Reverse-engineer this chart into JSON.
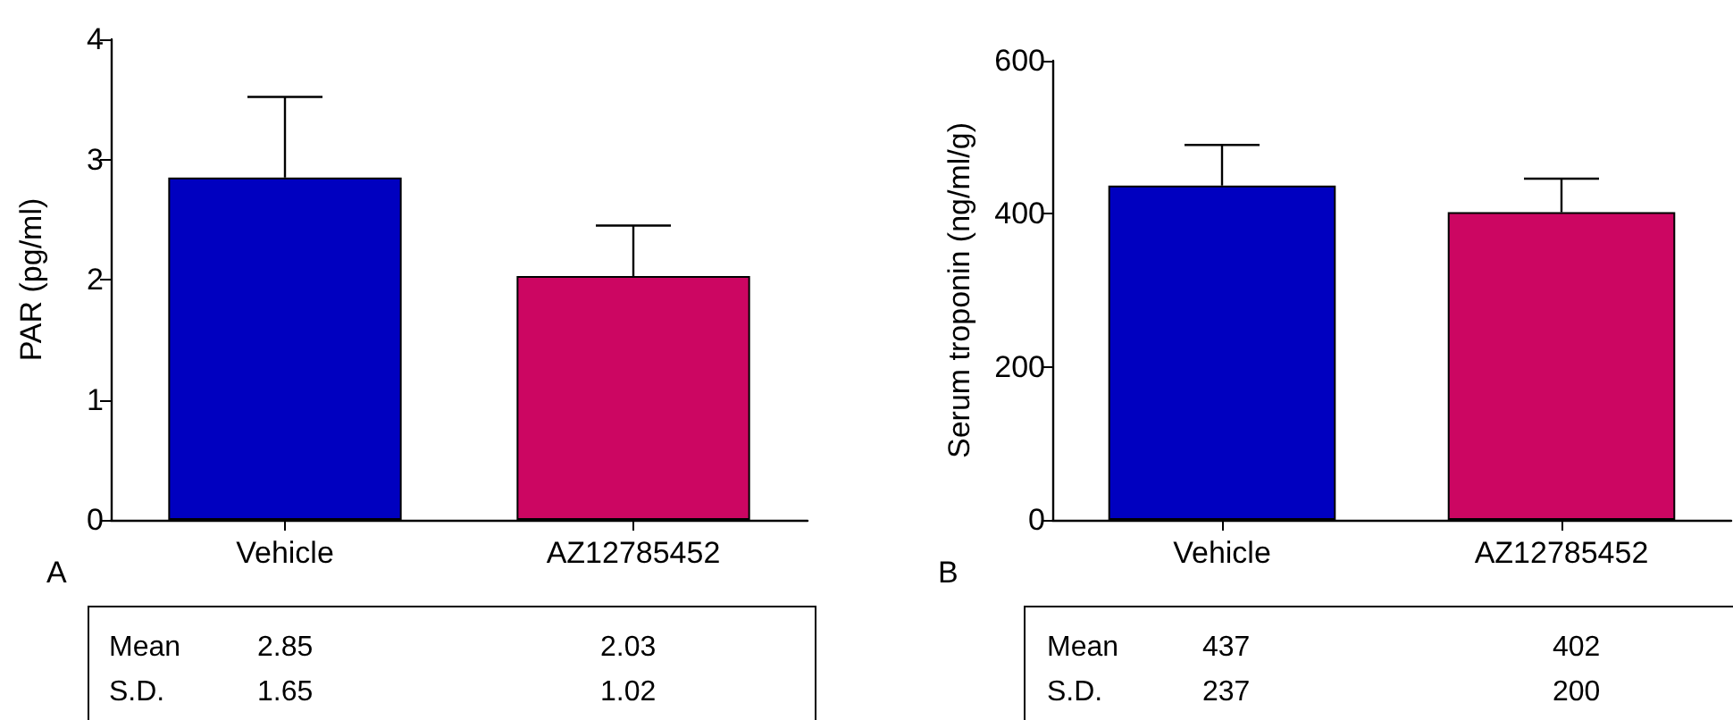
{
  "chart_data": [
    {
      "type": "bar",
      "ylabel": "PAR (pg/ml)",
      "categories": [
        "Vehicle",
        "AZ12785452"
      ],
      "values": [
        2.85,
        2.03
      ],
      "colors": [
        "#0000c0",
        "#cc0662"
      ],
      "errors": [
        [
          2.85,
          3.52
        ],
        [
          2.03,
          2.45
        ]
      ],
      "ylim": [
        0,
        4
      ],
      "yticks": [
        0,
        1,
        2,
        3,
        4
      ],
      "grid": false,
      "annotations": [
        "A",
        "Mean 2.85 2.03",
        "S.D. 1.65 1.02"
      ]
    },
    {
      "type": "bar",
      "ylabel": "Serum troponin (ng/ml/g)",
      "categories": [
        "Vehicle",
        "AZ12785452"
      ],
      "values": [
        437,
        402
      ],
      "colors": [
        "#0000c0",
        "#cc0662"
      ],
      "errors": [
        [
          437,
          490
        ],
        [
          402,
          446
        ]
      ],
      "ylim": [
        0,
        600
      ],
      "yticks": [
        0,
        200,
        400,
        600
      ],
      "grid": false,
      "annotations": [
        "B",
        "Mean 437 402",
        "S.D. 237 200"
      ]
    }
  ]
}
